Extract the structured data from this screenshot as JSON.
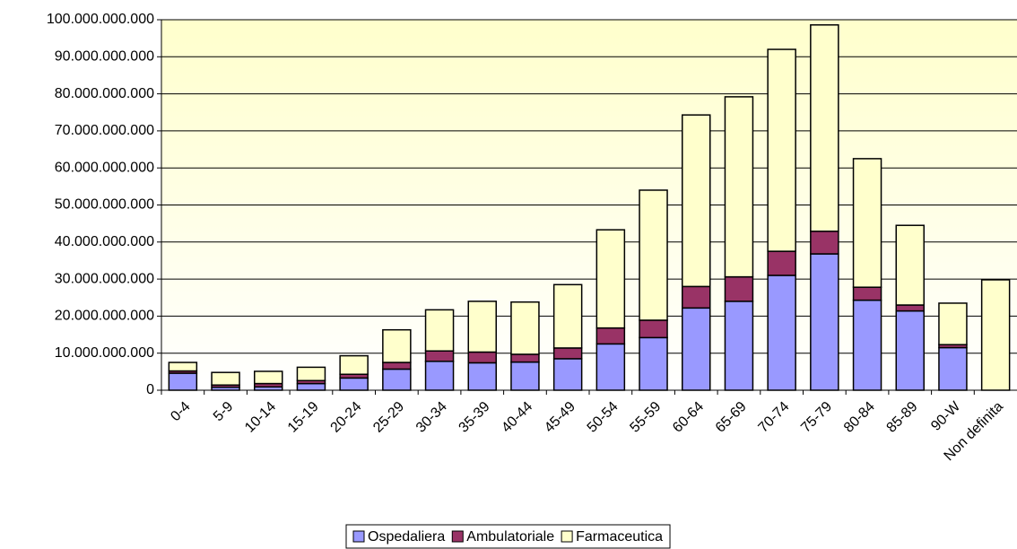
{
  "chart_data": {
    "type": "stacked-bar",
    "categories": [
      "0-4",
      "5-9",
      "10-14",
      "15-19",
      "20-24",
      "25-29",
      "30-34",
      "35-39",
      "40-44",
      "45-49",
      "50-54",
      "55-59",
      "60-64",
      "65-69",
      "70-74",
      "75-79",
      "80-84",
      "85-89",
      "90-W",
      "Non definita"
    ],
    "series": [
      {
        "name": "Ospedaliera",
        "color": "#9999ff",
        "values": [
          4600000000,
          800000000,
          900000000,
          1800000000,
          3300000000,
          5700000000,
          7800000000,
          7400000000,
          7600000000,
          8500000000,
          12500000000,
          14200000000,
          22200000000,
          24000000000,
          31000000000,
          36800000000,
          24300000000,
          21400000000,
          11500000000,
          0
        ]
      },
      {
        "name": "Ambulatoriale",
        "color": "#993366",
        "values": [
          600000000,
          600000000,
          900000000,
          800000000,
          1000000000,
          1800000000,
          2800000000,
          2900000000,
          2100000000,
          2900000000,
          4300000000,
          4700000000,
          5800000000,
          6600000000,
          6500000000,
          6100000000,
          3500000000,
          1600000000,
          800000000,
          0
        ]
      },
      {
        "name": "Farmaceutica",
        "color": "#ffffcc",
        "values": [
          2300000000,
          3400000000,
          3300000000,
          3600000000,
          5000000000,
          8800000000,
          11100000000,
          13700000000,
          14100000000,
          17100000000,
          26500000000,
          35100000000,
          46300000000,
          48600000000,
          54500000000,
          55700000000,
          34700000000,
          21500000000,
          11200000000,
          29800000000
        ]
      }
    ],
    "ylim": [
      0,
      100000000000
    ],
    "yticks": [
      {
        "value": 0,
        "label": "0"
      },
      {
        "value": 10000000000,
        "label": "10.000.000.000"
      },
      {
        "value": 20000000000,
        "label": "20.000.000.000"
      },
      {
        "value": 30000000000,
        "label": "30.000.000.000"
      },
      {
        "value": 40000000000,
        "label": "40.000.000.000"
      },
      {
        "value": 50000000000,
        "label": "50.000.000.000"
      },
      {
        "value": 60000000000,
        "label": "60.000.000.000"
      },
      {
        "value": 70000000000,
        "label": "70.000.000.000"
      },
      {
        "value": 80000000000,
        "label": "80.000.000.000"
      },
      {
        "value": 90000000000,
        "label": "90.000.000.000"
      },
      {
        "value": 100000000000,
        "label": "100.000.000.000"
      }
    ],
    "grid": true,
    "legend": "bottom"
  }
}
